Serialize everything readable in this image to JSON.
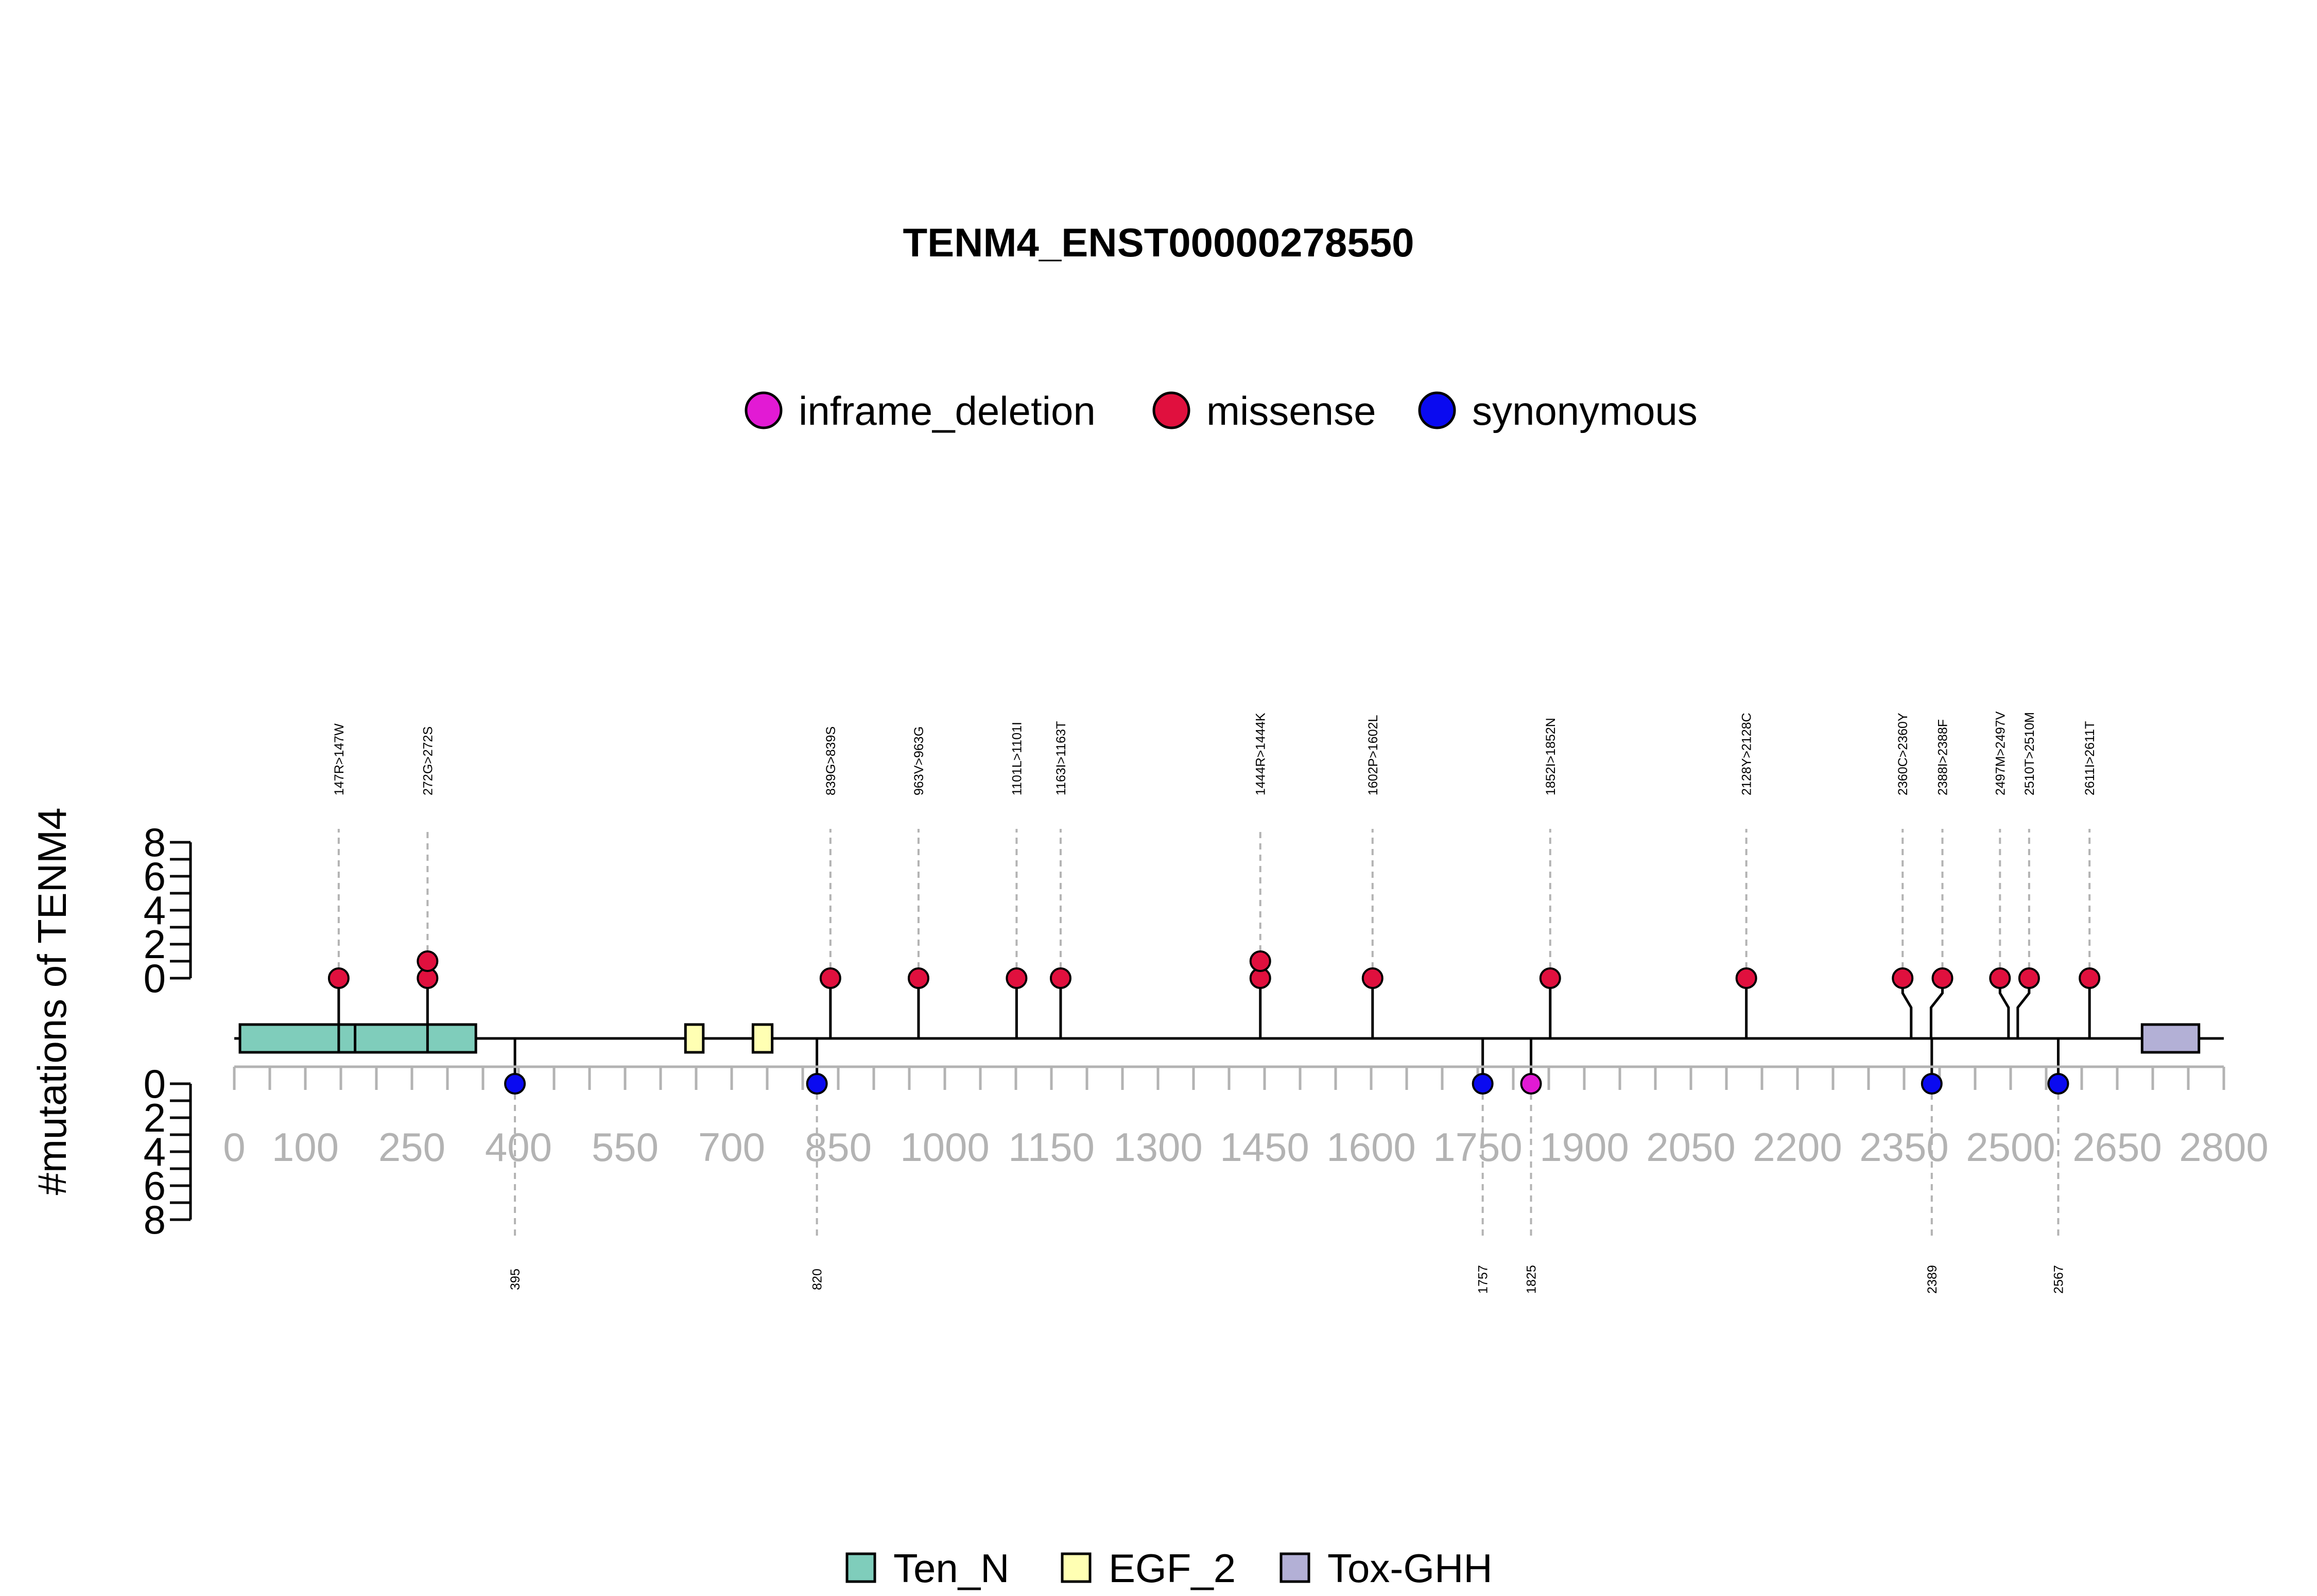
{
  "chart_data": {
    "type": "lollipop",
    "title": "TENM4_ENST00000278550",
    "ylabel": "#mutations of TENM4",
    "protein_length": 2800,
    "x_ticks": [
      0,
      100,
      250,
      400,
      550,
      700,
      850,
      1000,
      1150,
      1300,
      1450,
      1600,
      1750,
      1900,
      2050,
      2200,
      2350,
      2500,
      2650,
      2800
    ],
    "y_ticks": [
      0,
      2,
      4,
      6,
      8
    ],
    "ylim": [
      0,
      8
    ],
    "variant_legend": [
      {
        "name": "inframe_deletion",
        "color": "#e21ad4"
      },
      {
        "name": "missense",
        "color": "#e0103e"
      },
      {
        "name": "synonymous",
        "color": "#0a0af0"
      }
    ],
    "domain_legend": [
      {
        "name": "Ten_N",
        "color": "#7fcdbb"
      },
      {
        "name": "EGF_2",
        "color": "#ffffb3"
      },
      {
        "name": "Tox-GHH",
        "color": "#b3b0d6"
      }
    ],
    "domains": [
      {
        "name": "Ten_N",
        "start": 8,
        "end": 340
      },
      {
        "name": "EGF_2",
        "start": 635,
        "end": 660
      },
      {
        "name": "EGF_2",
        "start": 730,
        "end": 757
      },
      {
        "name": "Tox-GHH",
        "start": 2685,
        "end": 2765
      }
    ],
    "top_mutations": [
      {
        "pos": 147,
        "label_pos": 147,
        "count": 1,
        "type": "missense",
        "label": "147R>147W"
      },
      {
        "pos": 272,
        "label_pos": 272,
        "count": 2,
        "type": "missense",
        "label": "272G>272S"
      },
      {
        "pos": 839,
        "label_pos": 839,
        "count": 1,
        "type": "missense",
        "label": "839G>839S"
      },
      {
        "pos": 963,
        "label_pos": 963,
        "count": 1,
        "type": "missense",
        "label": "963V>963G"
      },
      {
        "pos": 1101,
        "label_pos": 1101,
        "count": 1,
        "type": "missense",
        "label": "1101L>1101I"
      },
      {
        "pos": 1163,
        "label_pos": 1163,
        "count": 1,
        "type": "missense",
        "label": "1163I>1163T"
      },
      {
        "pos": 1444,
        "label_pos": 1444,
        "count": 2,
        "type": "missense",
        "label": "1444R>1444K"
      },
      {
        "pos": 1602,
        "label_pos": 1602,
        "count": 1,
        "type": "missense",
        "label": "1602P>1602L"
      },
      {
        "pos": 1852,
        "label_pos": 1852,
        "count": 1,
        "type": "missense",
        "label": "1852I>1852N"
      },
      {
        "pos": 2128,
        "label_pos": 2128,
        "count": 1,
        "type": "missense",
        "label": "2128Y>2128C"
      },
      {
        "pos": 2360,
        "label_pos": 2348,
        "count": 1,
        "type": "missense",
        "label": "2360C>2360Y"
      },
      {
        "pos": 2388,
        "label_pos": 2404,
        "count": 1,
        "type": "missense",
        "label": "2388I>2388F"
      },
      {
        "pos": 2497,
        "label_pos": 2485,
        "count": 1,
        "type": "missense",
        "label": "2497M>2497V"
      },
      {
        "pos": 2510,
        "label_pos": 2526,
        "count": 1,
        "type": "missense",
        "label": "2510T>2510M"
      },
      {
        "pos": 2611,
        "label_pos": 2611,
        "count": 1,
        "type": "missense",
        "label": "2611I>2611T"
      }
    ],
    "bottom_mutations": [
      {
        "pos": 395,
        "count": 1,
        "type": "synonymous",
        "label": "395"
      },
      {
        "pos": 820,
        "count": 1,
        "type": "synonymous",
        "label": "820"
      },
      {
        "pos": 1757,
        "count": 1,
        "type": "synonymous",
        "label": "1757"
      },
      {
        "pos": 1825,
        "count": 1,
        "type": "inframe_deletion",
        "label": "1825"
      },
      {
        "pos": 2389,
        "count": 1,
        "type": "synonymous",
        "label": "2389"
      },
      {
        "pos": 2567,
        "count": 1,
        "type": "synonymous",
        "label": "2567"
      }
    ]
  }
}
